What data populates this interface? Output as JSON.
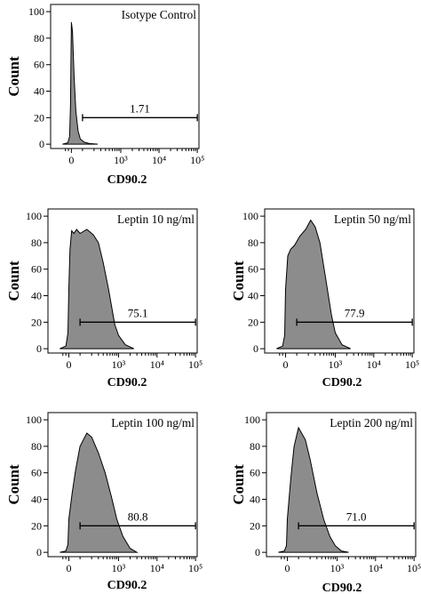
{
  "chart_data": [
    {
      "type": "area",
      "title": "Isotype Control",
      "xlabel": "CD90.2",
      "ylabel": "Count",
      "ylim": [
        0,
        100
      ],
      "y_ticks": [
        "0",
        "20",
        "40",
        "60",
        "80",
        "100"
      ],
      "x_ticks": [
        "0",
        "10³",
        "10⁴",
        "10⁵"
      ],
      "gate": {
        "label": "1.71",
        "x_start": 100,
        "x_end": 100000,
        "y": 20
      },
      "series": [
        {
          "x": [
            -300,
            -120,
            -60,
            -30,
            -10,
            0,
            10,
            25,
            40,
            60,
            80,
            110,
            150,
            250
          ],
          "y": [
            0,
            1,
            6,
            30,
            70,
            92,
            85,
            50,
            25,
            10,
            4,
            1.5,
            0.5,
            0
          ]
        }
      ]
    },
    {
      "type": "area",
      "title": "Leptin 10 ng/ml",
      "xlabel": "CD90.2",
      "ylabel": "Count",
      "ylim": [
        0,
        100
      ],
      "y_ticks": [
        "0",
        "20",
        "40",
        "60",
        "80",
        "100"
      ],
      "x_ticks": [
        "0",
        "10³",
        "10⁴",
        "10⁵"
      ],
      "gate": {
        "label": "75.1",
        "x_start": 100,
        "x_end": 100000,
        "y": 20
      },
      "series": [
        {
          "x": [
            -300,
            -100,
            -30,
            0,
            10,
            25,
            45,
            70,
            100,
            150,
            220,
            300,
            400,
            550,
            800,
            1000,
            1500,
            2500
          ],
          "y": [
            0,
            2,
            12,
            45,
            75,
            89,
            87,
            90,
            87,
            90,
            86,
            80,
            65,
            45,
            18,
            10,
            3,
            0
          ]
        }
      ]
    },
    {
      "type": "area",
      "title": "Leptin 50 ng/ml",
      "xlabel": "CD90.2",
      "ylabel": "Count",
      "ylim": [
        0,
        100
      ],
      "y_ticks": [
        "0",
        "20",
        "40",
        "60",
        "80",
        "100"
      ],
      "x_ticks": [
        "0",
        "10³",
        "10⁴",
        "10⁵"
      ],
      "gate": {
        "label": "77.9",
        "x_start": 100,
        "x_end": 100000,
        "y": 20
      },
      "series": [
        {
          "x": [
            -300,
            -100,
            -30,
            0,
            20,
            45,
            80,
            120,
            170,
            230,
            300,
            400,
            550,
            800,
            1000,
            1500,
            2500
          ],
          "y": [
            0,
            2,
            10,
            45,
            70,
            75,
            78,
            85,
            90,
            97,
            92,
            80,
            55,
            25,
            12,
            3,
            0
          ]
        }
      ]
    },
    {
      "type": "area",
      "title": "Leptin 100 ng/ml",
      "xlabel": "CD90.2",
      "ylabel": "Count",
      "ylim": [
        0,
        100
      ],
      "y_ticks": [
        "0",
        "20",
        "40",
        "60",
        "80",
        "100"
      ],
      "x_ticks": [
        "0",
        "10³",
        "10⁴",
        "10⁵"
      ],
      "gate": {
        "label": "80.8",
        "x_start": 100,
        "x_end": 100000,
        "y": 20
      },
      "series": [
        {
          "x": [
            -300,
            -100,
            -30,
            0,
            30,
            60,
            100,
            150,
            200,
            300,
            450,
            650,
            900,
            1300,
            2000,
            3000
          ],
          "y": [
            0,
            1,
            6,
            25,
            45,
            62,
            80,
            90,
            87,
            75,
            60,
            42,
            25,
            12,
            3,
            0
          ]
        }
      ]
    },
    {
      "type": "area",
      "title": "Leptin 200 ng/ml",
      "xlabel": "CD90.2",
      "ylabel": "Count",
      "ylim": [
        0,
        100
      ],
      "y_ticks": [
        "0",
        "20",
        "40",
        "60",
        "80",
        "100"
      ],
      "x_ticks": [
        "0",
        "10³",
        "10⁴",
        "10⁵"
      ],
      "gate": {
        "label": "71.0",
        "x_start": 100,
        "x_end": 100000,
        "y": 20
      },
      "series": [
        {
          "x": [
            -300,
            -100,
            -30,
            0,
            30,
            60,
            100,
            150,
            200,
            300,
            450,
            650,
            900,
            1300,
            2000
          ],
          "y": [
            0,
            1,
            5,
            25,
            55,
            80,
            94,
            85,
            70,
            45,
            25,
            12,
            5,
            1,
            0
          ]
        }
      ]
    }
  ],
  "colors": {
    "fill": "#8c8c8c",
    "stroke": "#000000",
    "background": "#ffffff"
  }
}
